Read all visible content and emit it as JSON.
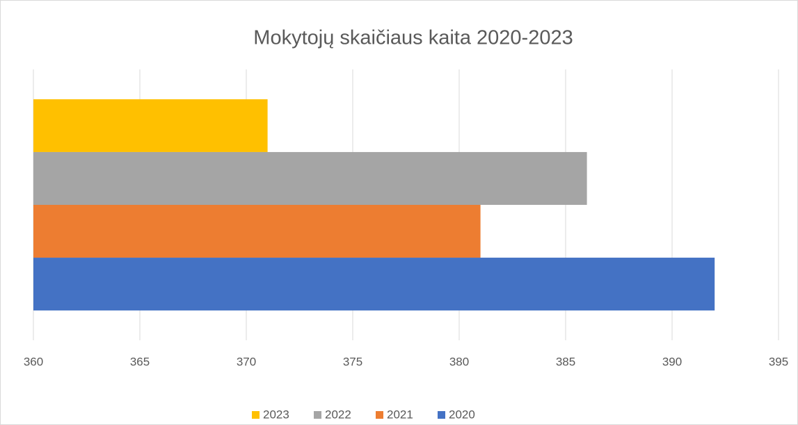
{
  "chart_data": {
    "type": "barh",
    "title": "Mokytojų skaičiaus kaita 2020-2023",
    "categories": [
      null
    ],
    "series": [
      {
        "name": "2023",
        "color": "#ffc000",
        "values": [
          371
        ]
      },
      {
        "name": "2022",
        "color": "#a5a5a5",
        "values": [
          386
        ]
      },
      {
        "name": "2021",
        "color": "#ed7d31",
        "values": [
          381
        ]
      },
      {
        "name": "2020",
        "color": "#4472c4",
        "values": [
          392
        ]
      }
    ],
    "xlim": [
      360,
      395
    ],
    "xticks": [
      360,
      365,
      370,
      375,
      380,
      385,
      390,
      395
    ],
    "grid": true,
    "legend": "bottom"
  }
}
